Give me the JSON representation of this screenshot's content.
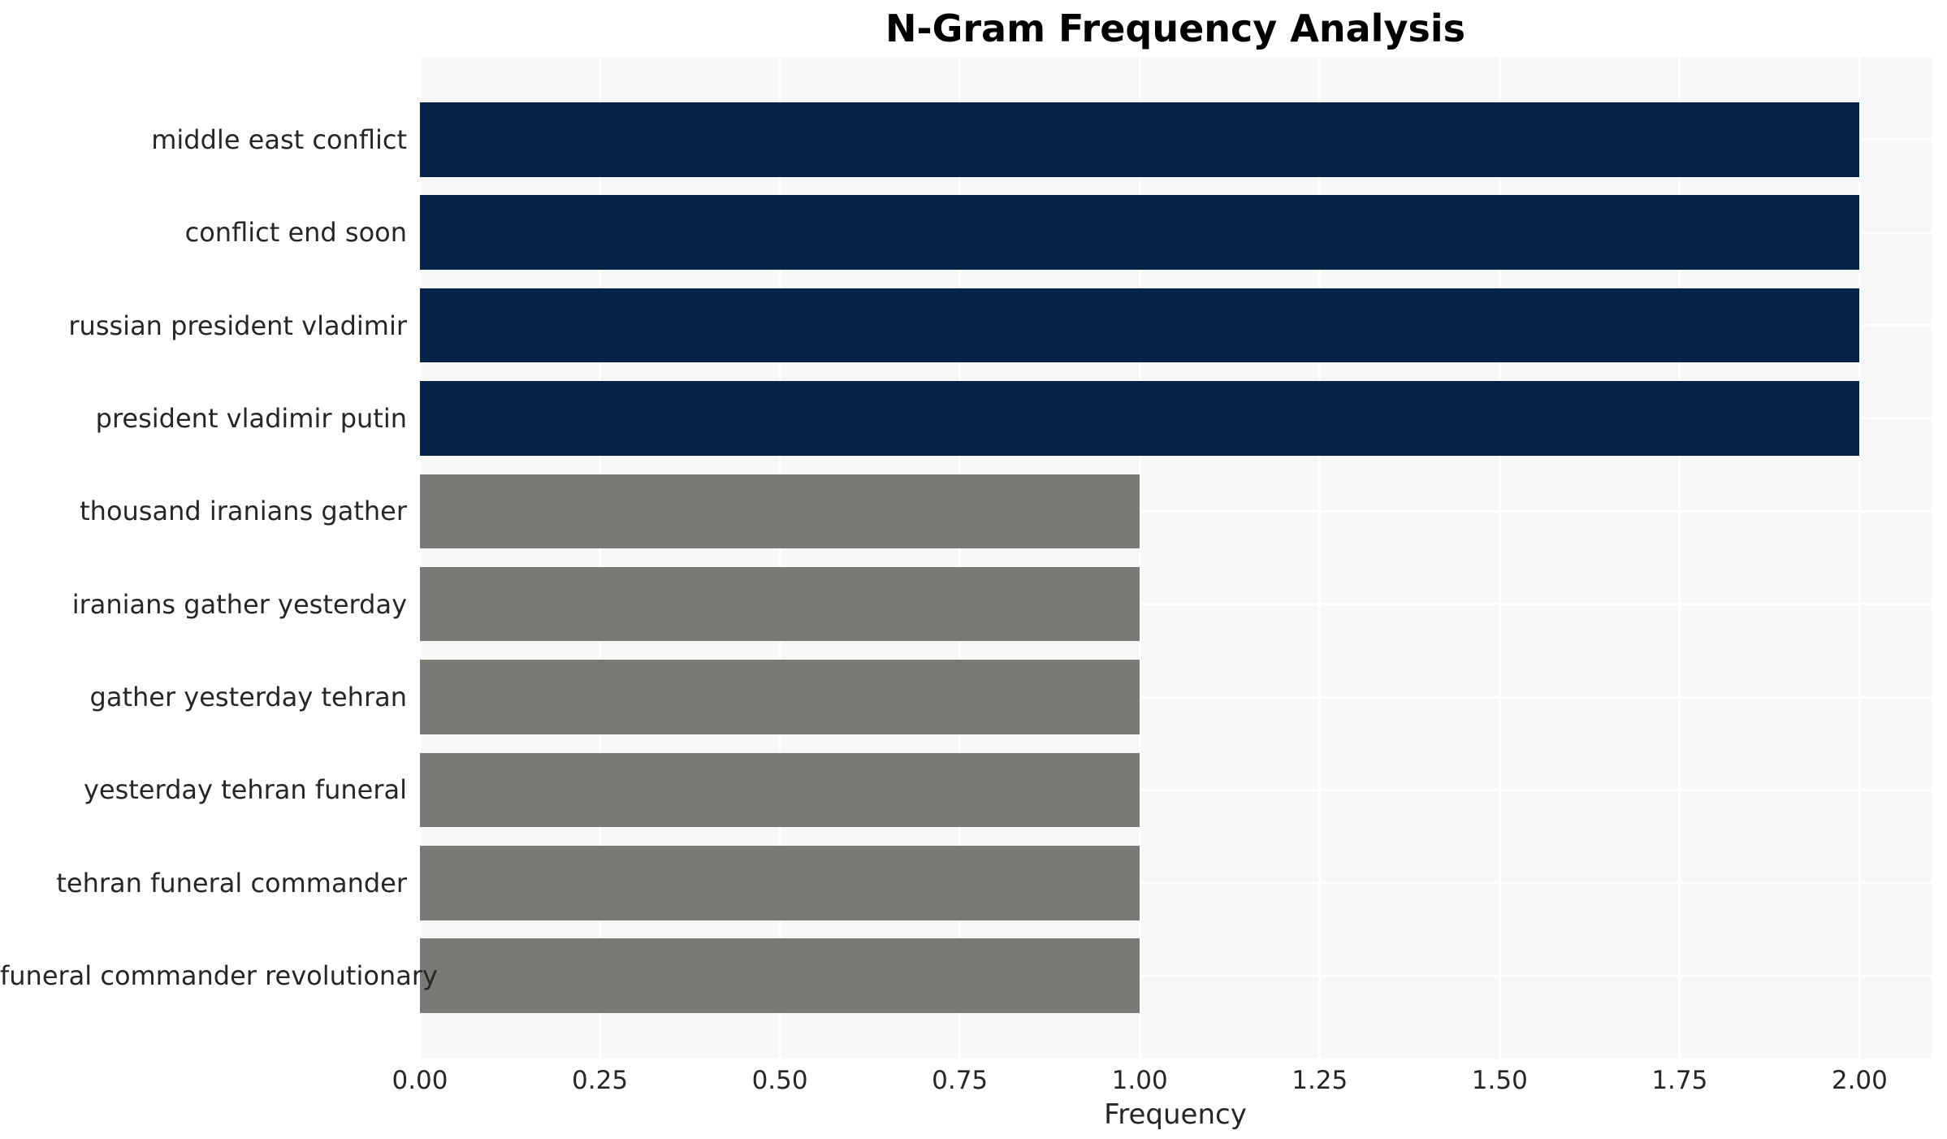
{
  "chart_data": {
    "type": "bar",
    "orientation": "horizontal",
    "title": "N-Gram Frequency Analysis",
    "xlabel": "Frequency",
    "ylabel": "",
    "categories": [
      "middle east conflict",
      "conflict end soon",
      "russian president vladimir",
      "president vladimir putin",
      "thousand iranians gather",
      "iranians gather yesterday",
      "gather yesterday tehran",
      "yesterday tehran funeral",
      "tehran funeral commander",
      "funeral commander revolutionary"
    ],
    "values": [
      2,
      2,
      2,
      2,
      1,
      1,
      1,
      1,
      1,
      1
    ],
    "bar_colors": [
      "#052346",
      "#052346",
      "#052346",
      "#052346",
      "#7a7a75",
      "#7a7a75",
      "#7a7a75",
      "#7a7a75",
      "#7a7a75",
      "#7a7a75"
    ],
    "xticks": {
      "values": [
        0,
        0.25,
        0.5,
        0.75,
        1.0,
        1.25,
        1.5,
        1.75,
        2.0
      ],
      "labels": [
        "0.00",
        "0.25",
        "0.50",
        "0.75",
        "1.00",
        "1.25",
        "1.50",
        "1.75",
        "2.00"
      ]
    },
    "xlim": [
      0,
      2.1
    ],
    "grid": true,
    "legend": false,
    "styles": {
      "plot_background": "#f7f7f7",
      "gridline_color": "#ffffff",
      "navy": "#052346",
      "gray": "#7a7a75",
      "text_color": "#262626",
      "title_color": "#000000",
      "figure_background": "#ffffff"
    }
  }
}
